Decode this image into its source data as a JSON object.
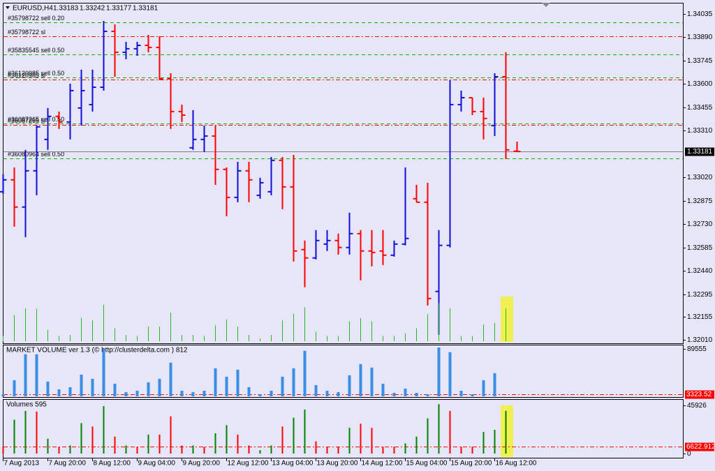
{
  "chart_data": [
    {
      "type": "ohlc",
      "title": "EURUSD,H4",
      "categories": [
        "7 Aug 2013",
        null,
        null,
        null,
        "7 Aug 20:00",
        null,
        null,
        null,
        "8 Aug 12:00",
        null,
        null,
        null,
        "9 Aug 04:00",
        null,
        null,
        null,
        "9 Aug 20:00",
        null,
        null,
        null,
        "12 Aug 12:00",
        null,
        null,
        null,
        "13 Aug 04:00",
        null,
        null,
        null,
        "13 Aug 20:00",
        null,
        null,
        null,
        "14 Aug 12:00",
        null,
        null,
        null,
        "15 Aug 04:00",
        null,
        null,
        null,
        "15 Aug 20:00",
        null,
        null,
        null,
        "16 Aug 12:00",
        null,
        null
      ],
      "open": [
        1.32931,
        1.33005,
        1.32836,
        1.33061,
        1.33256,
        1.33399,
        1.33364,
        1.33451,
        1.33472,
        1.3358,
        1.33927,
        1.33797,
        1.33819,
        1.3384,
        1.33827,
        1.33632,
        1.33429,
        1.33204,
        1.33256,
        1.33277,
        1.3307,
        1.32896,
        1.33061,
        1.32909,
        1.32931,
        1.33126,
        1.32961,
        1.32572,
        1.3252,
        1.32606,
        1.32628,
        1.32585,
        1.32671,
        1.32563,
        1.32563,
        1.32537,
        1.32606,
        1.32888,
        1.32866,
        1.32312,
        1.32598,
        1.33472,
        1.33515,
        1.33429,
        1.33342,
        1.33645,
        1.33183
      ],
      "high": [
        1.33039,
        1.33082,
        1.33191,
        1.33342,
        1.33451,
        1.33429,
        1.33602,
        1.33689,
        1.33689,
        1.33992,
        1.3397,
        1.33862,
        1.33862,
        1.33905,
        1.33897,
        1.33667,
        1.33472,
        1.33438,
        1.33342,
        1.33342,
        1.33082,
        1.33117,
        1.33117,
        1.33018,
        1.33147,
        1.33147,
        1.3316,
        1.32628,
        1.32693,
        1.32693,
        1.32671,
        1.32801,
        1.32693,
        1.32693,
        1.32693,
        1.32628,
        1.33082,
        1.32974,
        1.32987,
        1.32693,
        1.33624,
        1.33559,
        1.33515,
        1.33515,
        1.33667,
        1.33797,
        1.33242
      ],
      "low": [
        1.32918,
        1.32714,
        1.32649,
        1.32909,
        1.33191,
        1.33321,
        1.33256,
        1.33342,
        1.33429,
        1.33559,
        1.33645,
        1.33754,
        1.33775,
        1.33797,
        1.33624,
        1.33321,
        1.33364,
        1.33191,
        1.33178,
        1.32974,
        1.32779,
        1.32866,
        1.32866,
        1.32888,
        1.32909,
        1.32823,
        1.32498,
        1.32338,
        1.32511,
        1.32563,
        1.32541,
        1.32541,
        1.32381,
        1.32468,
        1.32476,
        1.32528,
        1.32598,
        1.32866,
        1.32225,
        1.32043,
        1.32585,
        1.33429,
        1.33407,
        1.33256,
        1.33277,
        1.33134,
        1.33177
      ],
      "close": [
        1.33005,
        1.32836,
        1.33061,
        1.33334,
        1.33399,
        1.33364,
        1.33559,
        1.33559,
        1.3358,
        1.33927,
        1.33797,
        1.33819,
        1.3384,
        1.33827,
        1.33632,
        1.33429,
        1.33407,
        1.33256,
        1.33277,
        1.3307,
        1.32896,
        1.33061,
        1.33005,
        1.32987,
        1.33126,
        1.32961,
        1.32563,
        1.3252,
        1.32628,
        1.32628,
        1.32585,
        1.32671,
        1.32563,
        1.32554,
        1.32537,
        1.32606,
        1.32641,
        1.32866,
        1.32268,
        1.32598,
        1.33472,
        1.33515,
        1.33429,
        1.33386,
        1.33645,
        1.33191,
        1.33181
      ],
      "up_color": "#1010d8",
      "down_color": "#ff0000",
      "ylim": [
        1.3199,
        1.341
      ],
      "yticks": [
        1.34035,
        {
          "value": 1.3389,
          "label": "1.33890"
        },
        1.33745,
        {
          "value": 1.336,
          "label": "1.33600"
        },
        1.33455,
        {
          "value": 1.3331,
          "label": "1.33310"
        },
        {
          "value": 1.3302,
          "label": "1.33020"
        },
        1.32875,
        {
          "value": 1.3273,
          "label": "1.32730"
        },
        1.32585,
        {
          "value": 1.3244,
          "label": "1.32440"
        },
        1.32295,
        1.32155,
        {
          "value": 1.3201,
          "label": "1.32010"
        }
      ],
      "orders": [
        {
          "label": "#35798722 sell 0.20",
          "price": 1.33983,
          "color": "#00b000"
        },
        {
          "label": "#35798722 sl",
          "price": 1.33897,
          "color": "#ff0000"
        },
        {
          "label": "#35835545 sell  0.50",
          "price": 1.33784,
          "color": "#00b000"
        },
        {
          "label": "#36120985 sell 0.50",
          "price": 1.33641,
          "color": "#00b000"
        },
        {
          "label": "#36120985 sl",
          "price": 1.33628,
          "color": "#ff0000"
        },
        {
          "label": "#36087265 sell 0.50",
          "price": 1.33355,
          "color": "#00b000"
        },
        {
          "label": "#36087265 sl",
          "price": 1.33347,
          "color": "#ff0000"
        },
        {
          "label": "#36080964 sell 0.50",
          "price": 1.33139,
          "color": "#00b000"
        }
      ]
    },
    {
      "type": "bar",
      "title": "MARKET VOLUME ver 1.3 (© http://clusterdelta.com ) 812",
      "values": [
        3951,
        30291,
        79020,
        79020,
        27657,
        13170,
        17121,
        40827,
        32925,
        89000,
        23706,
        7902,
        10536,
        26340,
        32925,
        63216,
        10536,
        7902,
        10536,
        52680,
        36876,
        50046,
        17121,
        3951,
        10536,
        36876,
        52680,
        85605,
        21072,
        10536,
        7902,
        39510,
        60582,
        53997,
        23706,
        6585,
        14487,
        6585,
        3951,
        91770,
        82971,
        10536,
        3951,
        30291,
        43461,
        null,
        null
      ],
      "color": "#3a8ee6",
      "ylim": [
        0,
        97000
      ],
      "yticks": [
        89555
      ],
      "level": 3323.52,
      "level_color": "#ff0000"
    },
    {
      "type": "bar",
      "title": "Volumes 595",
      "values": [
        6468,
        32340,
        40748,
        40102,
        14230,
        6468,
        7762,
        29106,
        25872,
        45276,
        16170,
        7762,
        6468,
        18110,
        18110,
        35574,
        7762,
        7762,
        6468,
        19404,
        27166,
        18110,
        7762,
        3234,
        7762,
        25872,
        34280,
        42042,
        11642,
        6468,
        6468,
        24578,
        28459,
        24578,
        6468,
        6468,
        9702,
        16170,
        33634,
        47216,
        40748,
        6468,
        6468,
        20698,
        22638,
        40748,
        null
      ],
      "colors": [
        "#ff0000",
        "#008000",
        "#008000",
        "#ff0000",
        "#008000",
        "#ff0000",
        "#008000",
        "#008000",
        "#ff0000",
        "#008000",
        "#ff0000",
        "#008000",
        "#ff0000",
        "#008000",
        "#ff0000",
        "#ff0000",
        "#ff0000",
        "#008000",
        "#ff0000",
        "#008000",
        "#008000",
        "#ff0000",
        "#ff0000",
        "#008000",
        "#008000",
        "#ff0000",
        "#008000",
        "#008000",
        "#ff0000",
        "#ff0000",
        "#ff0000",
        "#008000",
        "#ff0000",
        "#ff0000",
        "#ff0000",
        "#ff0000",
        "#008000",
        "#008000",
        "#008000",
        "#008000",
        "#ff0000",
        "#ff0000",
        "#ff0000",
        "#008000",
        "#008000",
        "#008000",
        "#008000"
      ],
      "overlay_color": "#22bb22",
      "ylim": [
        0,
        52000
      ],
      "yticks": [
        45926,
        0
      ],
      "level": 6622.912,
      "level_color": "#ff0000"
    }
  ]
}
